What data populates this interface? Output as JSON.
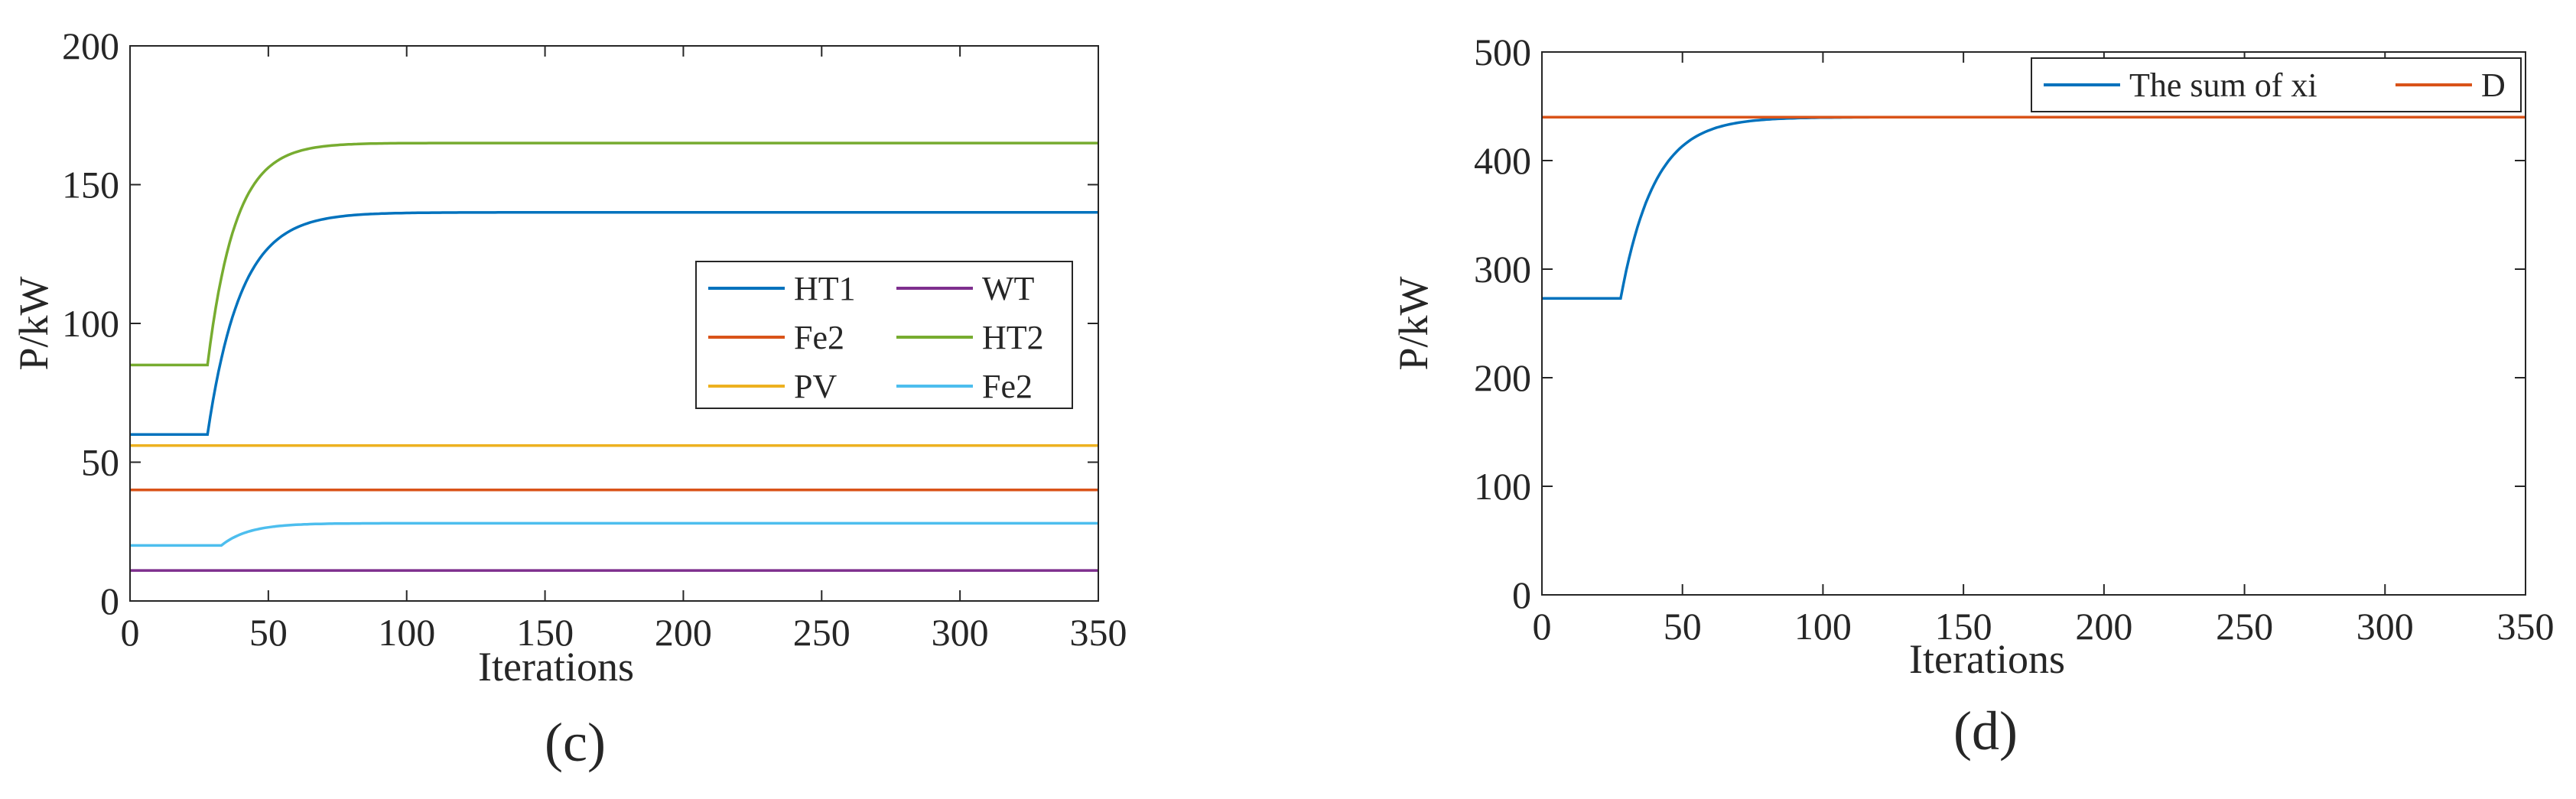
{
  "chart_data": [
    {
      "type": "line",
      "panel_label": "(c)",
      "xlabel": "Iterations",
      "ylabel": "P/kW",
      "xlim": [
        0,
        350
      ],
      "ylim": [
        0,
        200
      ],
      "xticks": [
        0,
        50,
        100,
        150,
        200,
        250,
        300,
        350
      ],
      "yticks": [
        0,
        50,
        100,
        150,
        200
      ],
      "legend_position": "center-right",
      "series": [
        {
          "name": "HT1",
          "color": "#0072BD",
          "start": 60,
          "end": 140,
          "t0": 28,
          "tau": 12
        },
        {
          "name": "Fe2",
          "color": "#D95319",
          "start": 40,
          "end": 40,
          "t0": 0,
          "tau": 1
        },
        {
          "name": "PV",
          "color": "#EDB120",
          "start": 56,
          "end": 56,
          "t0": 0,
          "tau": 1
        },
        {
          "name": "WT",
          "color": "#7E2F8E",
          "start": 11,
          "end": 11,
          "t0": 0,
          "tau": 1
        },
        {
          "name": "HT2",
          "color": "#77AC30",
          "start": 85,
          "end": 165,
          "t0": 28,
          "tau": 10
        },
        {
          "name": "Fe2",
          "color": "#4DBEEE",
          "start": 20,
          "end": 28,
          "t0": 33,
          "tau": 10
        }
      ]
    },
    {
      "type": "line",
      "panel_label": "(d)",
      "xlabel": "Iterations",
      "ylabel": "P/kW",
      "xlim": [
        0,
        350
      ],
      "ylim": [
        0,
        500
      ],
      "xticks": [
        0,
        50,
        100,
        150,
        200,
        250,
        300,
        350
      ],
      "yticks": [
        0,
        100,
        200,
        300,
        400,
        500
      ],
      "legend_position": "top-right",
      "series": [
        {
          "name": "The sum of xi",
          "color": "#0072BD",
          "start": 273,
          "end": 440,
          "t0": 28,
          "tau": 12
        },
        {
          "name": "D",
          "color": "#D95319",
          "start": 440,
          "end": 440,
          "t0": 0,
          "tau": 1
        }
      ]
    }
  ]
}
